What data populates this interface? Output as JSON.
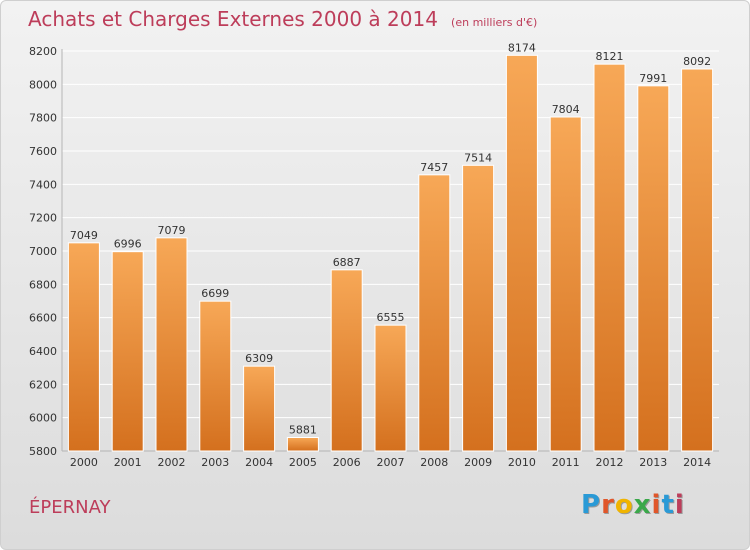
{
  "header": {
    "title": "Achats et Charges Externes 2000 à 2014",
    "subtitle": "(en milliers d'€)"
  },
  "footer": {
    "city": "ÉPERNAY"
  },
  "logo": {
    "text": "Proxiti",
    "letter_colors": [
      "#2a9ad6",
      "#e0562a",
      "#f0b400",
      "#3aa84a",
      "#e0562a",
      "#2a9ad6",
      "#bd3d5a"
    ]
  },
  "colors": {
    "bar_top": "#f7a857",
    "bar_bottom": "#d4701e",
    "gridline": "#ffffff",
    "label_text": "#333333",
    "title": "#bd3d5a"
  },
  "chart_data": {
    "type": "bar",
    "title": "Achats et Charges Externes 2000 à 2014",
    "subtitle": "(en milliers d'€)",
    "xlabel": "",
    "ylabel": "",
    "categories": [
      "2000",
      "2001",
      "2002",
      "2003",
      "2004",
      "2005",
      "2006",
      "2007",
      "2008",
      "2009",
      "2010",
      "2011",
      "2012",
      "2013",
      "2014"
    ],
    "values": [
      7049,
      6996,
      7079,
      6699,
      6309,
      5881,
      6887,
      6555,
      7457,
      7514,
      8174,
      7804,
      8121,
      7991,
      8092
    ],
    "ylim": [
      5800,
      8200
    ],
    "yticks": [
      5800,
      6000,
      6200,
      6400,
      6600,
      6800,
      7000,
      7200,
      7400,
      7600,
      7800,
      8000,
      8200
    ],
    "grid": true,
    "data_labels": true
  }
}
